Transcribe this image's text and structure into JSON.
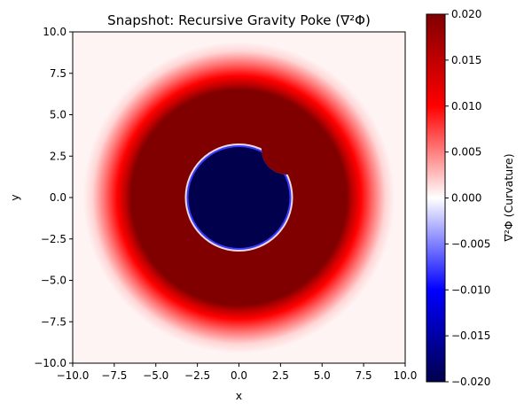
{
  "chart_data": {
    "type": "heatmap",
    "title": "Snapshot: Recursive Gravity Poke (∇²Φ)",
    "xlabel": "x",
    "ylabel": "y",
    "xlim": [
      -10.0,
      10.0
    ],
    "ylim": [
      -10.0,
      10.0
    ],
    "x_ticks": [
      "−10.0",
      "−7.5",
      "−5.0",
      "−2.5",
      "0.0",
      "2.5",
      "5.0",
      "7.5",
      "10.0"
    ],
    "y_ticks": [
      "10.0",
      "7.5",
      "5.0",
      "2.5",
      "0.0",
      "−2.5",
      "−5.0",
      "−7.5",
      "−10.0"
    ],
    "colorbar": {
      "label": "∇²Φ (Curvature)",
      "colormap": "seismic",
      "range": [
        -0.02,
        0.02
      ],
      "ticks": [
        "0.020",
        "0.015",
        "0.010",
        "0.005",
        "0.000",
        "−0.005",
        "−0.010",
        "−0.015",
        "−0.020"
      ]
    },
    "field": {
      "inner_region": {
        "shape": "disc with notch",
        "center": [
          0.0,
          0.0
        ],
        "radius": 3.1,
        "notch_center": [
          2.8,
          2.9
        ],
        "notch_radius": 1.5,
        "value": -0.02
      },
      "outer_region": {
        "shape": "annulus",
        "inner_radius": 3.1,
        "saturated_until_radius": 6.5,
        "fade_to_zero_radius": 9.5,
        "value": 0.02
      },
      "background_value": 0.0
    },
    "colors": {
      "positive_max": "#800000",
      "positive_mid": "#ff0000",
      "zero": "#ffffff",
      "negative_mid": "#0000ff",
      "negative_max": "#00004c"
    }
  }
}
